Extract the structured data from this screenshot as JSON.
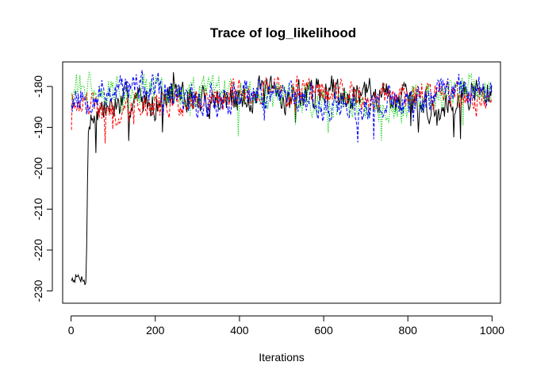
{
  "chart_data": {
    "type": "line",
    "title": "Trace of log_likelihood",
    "xlabel": "Iterations",
    "ylabel": "",
    "xlim": [
      -20,
      1020
    ],
    "ylim": [
      -233,
      -174
    ],
    "xticks": [
      0,
      200,
      400,
      600,
      800,
      1000
    ],
    "yticks": [
      -230,
      -220,
      -210,
      -200,
      -190,
      -180
    ],
    "grid": false,
    "legend": "none",
    "n_iterations": 1000,
    "series": [
      {
        "color": "#000000",
        "line_style": "solid",
        "anchors_x": [
          0,
          10,
          20,
          30,
          35,
          38,
          40,
          45,
          60,
          100,
          150,
          200,
          250,
          300,
          350,
          400,
          450,
          500,
          550,
          600,
          650,
          700,
          750,
          800,
          850,
          870,
          900,
          950,
          1000
        ],
        "anchors_y": [
          -227,
          -226.5,
          -227,
          -226.5,
          -228,
          -215,
          -190,
          -189,
          -186,
          -185,
          -183,
          -184,
          -181,
          -184,
          -183,
          -184,
          -181,
          -183,
          -182,
          -181,
          -181,
          -182,
          -182,
          -184,
          -185,
          -187,
          -183,
          -181,
          -182
        ],
        "noise": 3.2,
        "seed": 7
      },
      {
        "color": "#ff0000",
        "line_style": "dashed",
        "anchors_x": [
          0,
          40,
          80,
          120,
          160,
          200,
          240,
          280,
          320,
          360,
          400,
          440,
          480,
          520,
          560,
          600,
          640,
          680,
          720,
          760,
          800,
          840,
          880,
          920,
          960,
          1000
        ],
        "anchors_y": [
          -183,
          -184,
          -186,
          -187,
          -185,
          -184,
          -185,
          -184,
          -183,
          -183,
          -182,
          -181,
          -180,
          -181,
          -180,
          -181,
          -182,
          -182,
          -183,
          -183,
          -182,
          -181,
          -182,
          -183,
          -184,
          -183
        ],
        "noise": 2.8,
        "seed": 19
      },
      {
        "color": "#00cd00",
        "line_style": "dotted",
        "anchors_x": [
          0,
          50,
          100,
          150,
          200,
          250,
          300,
          350,
          400,
          450,
          500,
          550,
          600,
          650,
          700,
          750,
          800,
          850,
          900,
          950,
          1000
        ],
        "anchors_y": [
          -180,
          -181,
          -182,
          -181,
          -181,
          -182,
          -182,
          -181,
          -183,
          -182,
          -182,
          -183,
          -184,
          -184,
          -186,
          -187,
          -184,
          -183,
          -182,
          -180,
          -180
        ],
        "noise": 3.2,
        "seed": 31
      },
      {
        "color": "#0000ff",
        "line_style": "dashed",
        "anchors_x": [
          0,
          50,
          100,
          150,
          200,
          250,
          300,
          350,
          400,
          450,
          500,
          550,
          600,
          650,
          700,
          750,
          800,
          850,
          900,
          950,
          1000
        ],
        "anchors_y": [
          -183,
          -182,
          -181,
          -180,
          -181,
          -183,
          -184,
          -183,
          -183,
          -182,
          -181,
          -182,
          -185,
          -185,
          -186,
          -184,
          -184,
          -183,
          -180,
          -181,
          -181
        ],
        "noise": 3.2,
        "seed": 53
      }
    ]
  }
}
